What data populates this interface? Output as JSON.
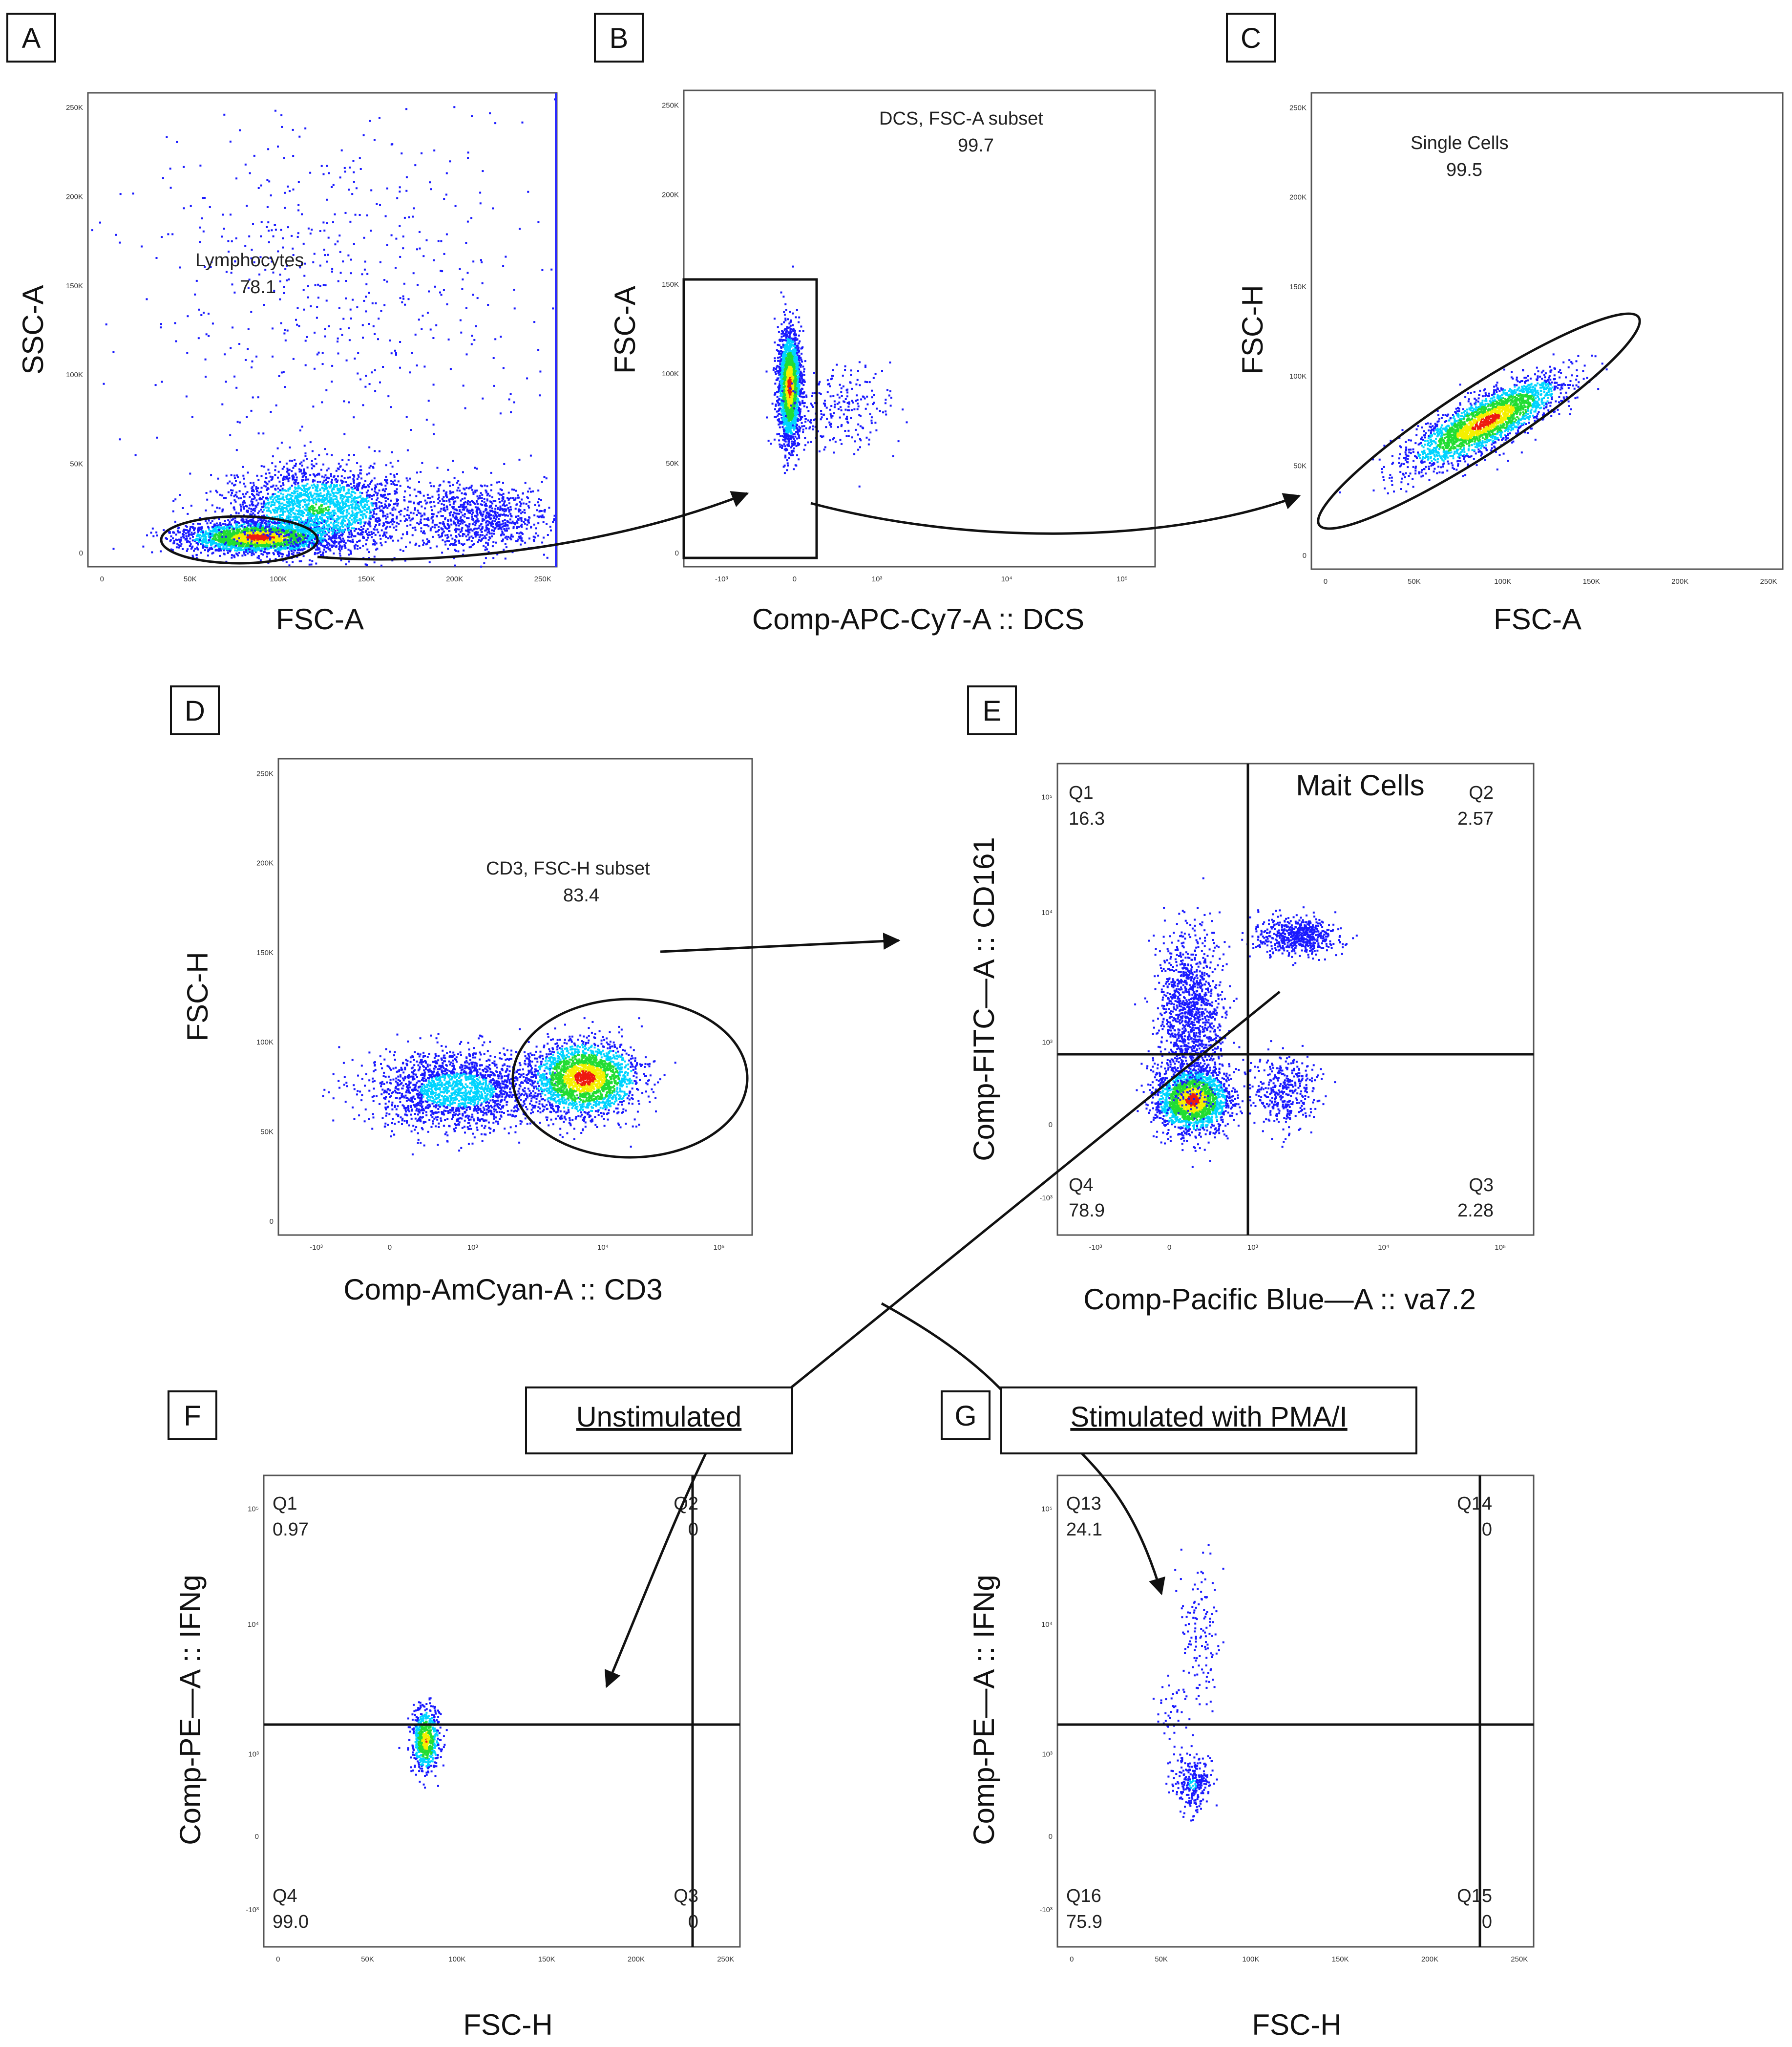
{
  "figure": {
    "panel_letters": [
      "A",
      "B",
      "C",
      "D",
      "E",
      "F",
      "G"
    ],
    "conditions": {
      "unstimulated": "Unstimulated",
      "stimulated": "Stimulated with PMA/I"
    }
  },
  "colors": {
    "cool": "#1a1aff",
    "cyan": "#00d4ff",
    "green": "#22dd33",
    "yellow": "#f5f000",
    "red": "#ee1a10",
    "line": "#111111"
  },
  "chart_data": [
    {
      "id": "A",
      "type": "scatter",
      "xlabel": "FSC-A",
      "ylabel": "SSC-A",
      "xticks": [
        "0",
        "50K",
        "100K",
        "150K",
        "200K",
        "250K"
      ],
      "yticks": [
        "0",
        "50K",
        "100K",
        "150K",
        "200K",
        "250K"
      ],
      "xlim": [
        0,
        262000
      ],
      "ylim": [
        0,
        262000
      ],
      "gates": [
        {
          "name": "Lymphocytes",
          "value": "78.1",
          "shape": "ellipse"
        }
      ]
    },
    {
      "id": "B",
      "type": "scatter",
      "xlabel": "Comp-APC-Cy7-A :: DCS",
      "ylabel": "FSC-A",
      "xticks": [
        "-10³",
        "0",
        "10³",
        "10⁴",
        "10⁵"
      ],
      "yticks": [
        "0",
        "50K",
        "100K",
        "150K",
        "200K",
        "250K"
      ],
      "ylim": [
        0,
        262000
      ],
      "gates": [
        {
          "name": "DCS, FSC-A subset",
          "value": "99.7",
          "shape": "rectangle"
        }
      ]
    },
    {
      "id": "C",
      "type": "scatter",
      "xlabel": "FSC-A",
      "ylabel": "FSC-H",
      "xticks": [
        "0",
        "50K",
        "100K",
        "150K",
        "200K",
        "250K"
      ],
      "yticks": [
        "0",
        "50K",
        "100K",
        "150K",
        "200K",
        "250K"
      ],
      "xlim": [
        0,
        262000
      ],
      "ylim": [
        0,
        262000
      ],
      "gates": [
        {
          "name": "Single Cells",
          "value": "99.5",
          "shape": "ellipse"
        }
      ]
    },
    {
      "id": "D",
      "type": "scatter",
      "xlabel": "Comp-AmCyan-A :: CD3",
      "ylabel": "FSC-H",
      "xticks": [
        "-10³",
        "0",
        "10³",
        "10⁴",
        "10⁵"
      ],
      "yticks": [
        "0",
        "50K",
        "100K",
        "150K",
        "200K",
        "250K"
      ],
      "ylim": [
        0,
        262000
      ],
      "gates": [
        {
          "name": "CD3, FSC-H subset",
          "value": "83.4",
          "shape": "ellipse"
        }
      ]
    },
    {
      "id": "E",
      "type": "scatter",
      "xlabel": "Comp-Pacific Blue—A :: va7.2",
      "ylabel": "Comp-FITC—A :: CD161",
      "title": "Mait Cells",
      "xticks": [
        "-10³",
        "0",
        "10³",
        "10⁴",
        "10⁵"
      ],
      "yticks": [
        "-10³",
        "0",
        "10³",
        "10⁴",
        "10⁵"
      ],
      "quadrants": [
        {
          "name": "Q1",
          "value": "16.3"
        },
        {
          "name": "Q2",
          "value": "2.57"
        },
        {
          "name": "Q3",
          "value": "2.28"
        },
        {
          "name": "Q4",
          "value": "78.9"
        }
      ]
    },
    {
      "id": "F",
      "type": "scatter",
      "xlabel": "FSC-H",
      "ylabel": "Comp-PE—A :: IFNg",
      "xticks": [
        "0",
        "50K",
        "100K",
        "150K",
        "200K",
        "250K"
      ],
      "yticks": [
        "-10³",
        "0",
        "10³",
        "10⁴",
        "10⁵"
      ],
      "xlim": [
        0,
        262000
      ],
      "quadrants": [
        {
          "name": "Q1",
          "value": "0.97"
        },
        {
          "name": "Q2",
          "value": "0"
        },
        {
          "name": "Q3",
          "value": "0"
        },
        {
          "name": "Q4",
          "value": "99.0"
        }
      ]
    },
    {
      "id": "G",
      "type": "scatter",
      "xlabel": "FSC-H",
      "ylabel": "Comp-PE—A :: IFNg",
      "xticks": [
        "0",
        "50K",
        "100K",
        "150K",
        "200K",
        "250K"
      ],
      "yticks": [
        "-10³",
        "0",
        "10³",
        "10⁴",
        "10⁵"
      ],
      "xlim": [
        0,
        262000
      ],
      "quadrants": [
        {
          "name": "Q13",
          "value": "24.1"
        },
        {
          "name": "Q14",
          "value": "0"
        },
        {
          "name": "Q15",
          "value": "0"
        },
        {
          "name": "Q16",
          "value": "75.9"
        }
      ]
    }
  ]
}
